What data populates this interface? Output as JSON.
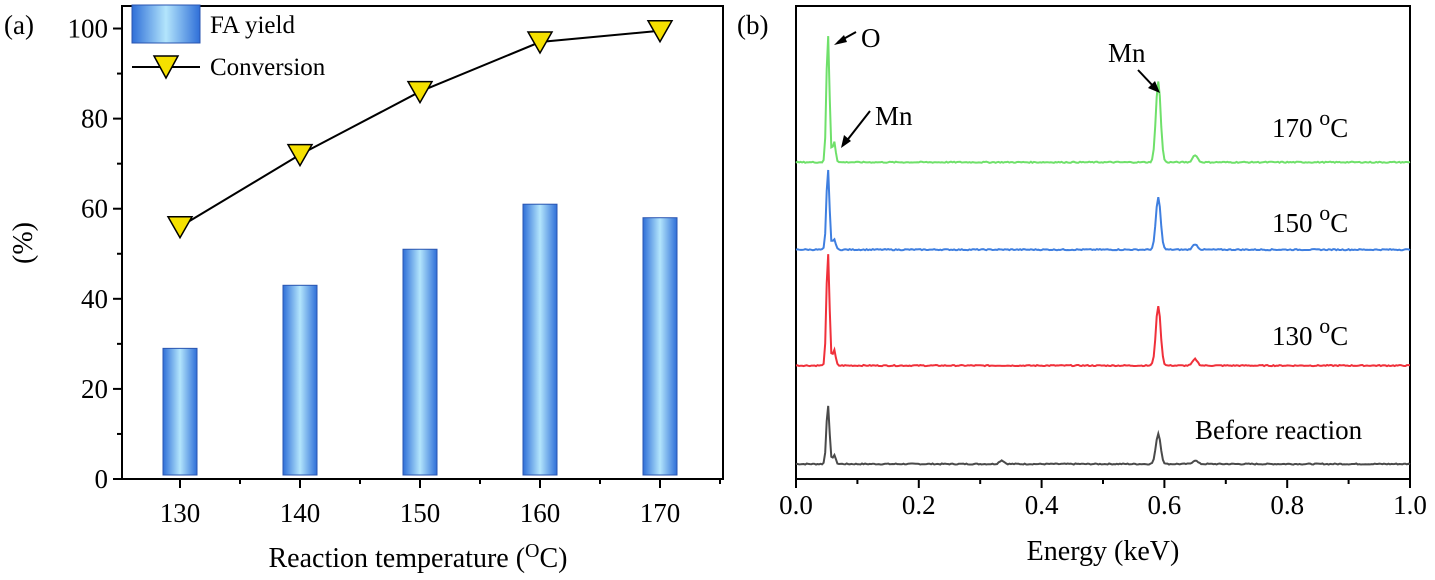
{
  "chart_data": [
    {
      "panel_label": "(a)",
      "type": "bar",
      "xlabel_main": "Reaction temperature (",
      "xlabel_sup": "O",
      "xlabel_end": "C)",
      "ylabel": "(%)",
      "categories": [
        "130",
        "140",
        "150",
        "160",
        "170"
      ],
      "ylim": [
        0,
        105
      ],
      "yticks": [
        0,
        20,
        40,
        60,
        80,
        100
      ],
      "legend_position": "top-left",
      "series": [
        {
          "name": "FA yield",
          "kind": "bar",
          "values": [
            29,
            43,
            51,
            61,
            58
          ],
          "color_light": "#b3e5fc",
          "color_dark": "#2f6fd8"
        },
        {
          "name": "Conversion",
          "kind": "line",
          "marker": "down-triangle",
          "values": [
            56,
            72,
            86,
            97,
            99.5
          ],
          "marker_color": "#f5e000",
          "line_color": "#000000"
        }
      ]
    },
    {
      "panel_label": "(b)",
      "type": "line",
      "xlabel": "Energy (keV)",
      "xlim": [
        0.0,
        1.0
      ],
      "xticks": [
        "0.0",
        "0.2",
        "0.4",
        "0.6",
        "0.8",
        "1.0"
      ],
      "y_ticks_shown": false,
      "series": [
        {
          "name": "Before reaction",
          "label_text": "Before reaction",
          "color": "#4a4a4a",
          "baseline": 0,
          "peaks": [
            {
              "energy": 0.052,
              "height": 0.65
            },
            {
              "energy": 0.062,
              "height": 0.1
            },
            {
              "energy": 0.335,
              "height": 0.04
            },
            {
              "energy": 0.59,
              "height": 0.33
            },
            {
              "energy": 0.65,
              "height": 0.04
            }
          ]
        },
        {
          "name": "130 oC",
          "label_main": "130 ",
          "label_sup": "o",
          "label_end": "C",
          "color": "#f0303a",
          "baseline": 1.07,
          "peaks": [
            {
              "energy": 0.052,
              "height": 1.23
            },
            {
              "energy": 0.062,
              "height": 0.17
            },
            {
              "energy": 0.59,
              "height": 0.65
            },
            {
              "energy": 0.65,
              "height": 0.07
            }
          ]
        },
        {
          "name": "150 oC",
          "label_main": "150 ",
          "label_sup": "o",
          "label_end": "C",
          "color": "#3f7fe0",
          "baseline": 2.33,
          "peaks": [
            {
              "energy": 0.052,
              "height": 0.88
            },
            {
              "energy": 0.062,
              "height": 0.12
            },
            {
              "energy": 0.59,
              "height": 0.57
            },
            {
              "energy": 0.65,
              "height": 0.06
            }
          ]
        },
        {
          "name": "170 oC",
          "label_main": "170 ",
          "label_sup": "o",
          "label_end": "C",
          "color": "#6fe06a",
          "baseline": 3.28,
          "peaks": [
            {
              "energy": 0.052,
              "height": 1.4
            },
            {
              "energy": 0.062,
              "height": 0.23
            },
            {
              "energy": 0.59,
              "height": 0.88
            },
            {
              "energy": 0.65,
              "height": 0.08
            }
          ]
        }
      ],
      "annotations": [
        {
          "text": "O",
          "target_series": "170 oC",
          "target_energy": 0.052
        },
        {
          "text": "Mn",
          "target_series": "170 oC",
          "target_energy": 0.062
        },
        {
          "text": "Mn",
          "target_series": "170 oC",
          "target_energy": 0.59
        }
      ]
    }
  ]
}
